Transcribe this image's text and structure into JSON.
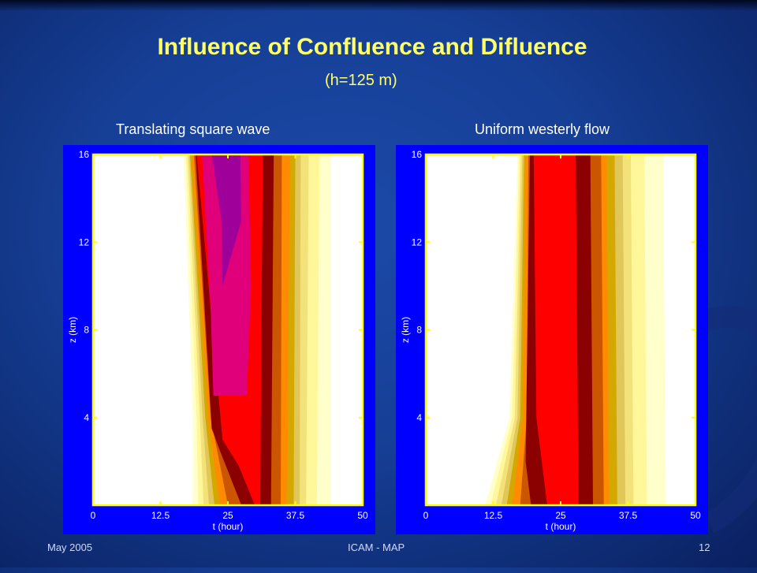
{
  "slide": {
    "title": "Influence of Confluence and Difluence",
    "subtitle": "(h=125 m)",
    "footer_left": "May 2005",
    "footer_center": "ICAM - MAP",
    "footer_right": "12"
  },
  "colors": {
    "background": "#163f96",
    "title": "#ffff66",
    "plot_frame": "#0000ff",
    "axis_line": "#ffff00",
    "contour_levels": [
      "#ffffff",
      "#ffffcc",
      "#fff799",
      "#f3e27a",
      "#e1c65a",
      "#d5a800",
      "#ff8c00",
      "#cc5500",
      "#8b0000",
      "#ff0000",
      "#e0007a",
      "#a0009a"
    ]
  },
  "chart_data": [
    {
      "type": "contour",
      "title": "Translating square wave",
      "xlabel": "t (hour)",
      "ylabel": "z (km)",
      "xlim": [
        0,
        50
      ],
      "ylim": [
        0,
        16
      ],
      "xticks": [
        "0",
        "12.5",
        "25",
        "37.5",
        "50"
      ],
      "yticks": [
        "4",
        "8",
        "12",
        "16"
      ],
      "contour_bands": [
        {
          "level": 0,
          "left": [
            [
              17,
              0
            ],
            [
              17.5,
              4
            ],
            [
              16.5,
              16
            ]
          ],
          "right": [
            [
              50,
              0
            ],
            [
              50,
              16
            ]
          ]
        },
        {
          "level": 1,
          "left": [
            [
              18.5,
              0
            ],
            [
              18.5,
              4
            ],
            [
              16.8,
              16
            ]
          ],
          "right": [
            [
              44,
              0
            ],
            [
              44,
              16
            ]
          ]
        },
        {
          "level": 2,
          "left": [
            [
              19.5,
              0
            ],
            [
              19.2,
              4
            ],
            [
              17.2,
              16
            ]
          ],
          "right": [
            [
              41.5,
              0
            ],
            [
              42,
              16
            ]
          ]
        },
        {
          "level": 3,
          "left": [
            [
              20.5,
              0
            ],
            [
              19.8,
              4
            ],
            [
              17.5,
              16
            ]
          ],
          "right": [
            [
              39.5,
              0
            ],
            [
              40,
              16
            ]
          ]
        },
        {
          "level": 4,
          "left": [
            [
              21.5,
              0
            ],
            [
              20.3,
              4
            ],
            [
              17.8,
              16
            ]
          ],
          "right": [
            [
              38.3,
              0
            ],
            [
              38.5,
              16
            ]
          ]
        },
        {
          "level": 5,
          "left": [
            [
              22.5,
              0
            ],
            [
              20.8,
              4
            ],
            [
              18,
              16
            ]
          ],
          "right": [
            [
              37.2,
              0
            ],
            [
              37.5,
              16
            ]
          ]
        },
        {
          "level": 6,
          "left": [
            [
              23.5,
              0
            ],
            [
              21.3,
              4
            ],
            [
              18.3,
              16
            ]
          ],
          "right": [
            [
              36,
              0
            ],
            [
              36.5,
              16
            ]
          ]
        },
        {
          "level": 7,
          "left": [
            [
              25,
              0
            ],
            [
              21.8,
              4
            ],
            [
              18.7,
              16
            ]
          ],
          "right": [
            [
              34.8,
              0
            ],
            [
              35,
              16
            ]
          ]
        },
        {
          "level": 8,
          "left": [
            [
              27.5,
              0
            ],
            [
              23.5,
              2.5
            ],
            [
              22,
              3.5
            ],
            [
              19,
              16
            ]
          ],
          "right": [
            [
              33,
              0
            ],
            [
              33.5,
              16
            ]
          ]
        },
        {
          "level": 9,
          "left": [
            [
              30,
              0
            ],
            [
              27,
              1.8
            ],
            [
              24,
              3
            ],
            [
              19.2,
              16
            ]
          ],
          "right": [
            [
              31,
              0
            ],
            [
              31.2,
              8
            ],
            [
              31.5,
              16
            ]
          ]
        },
        {
          "level": 10,
          "left": [
            [
              22.3,
              5
            ],
            [
              21.8,
              9
            ],
            [
              20.2,
              16
            ]
          ],
          "right": [
            [
              28.5,
              5
            ],
            [
              29.3,
              10
            ],
            [
              28.8,
              16
            ]
          ]
        },
        {
          "level": 11,
          "left": [
            [
              24,
              10
            ],
            [
              23.8,
              13
            ],
            [
              22,
              16
            ]
          ],
          "right": [
            [
              27.5,
              13
            ],
            [
              27.3,
              16
            ]
          ]
        }
      ]
    },
    {
      "type": "contour",
      "title": "Uniform westerly flow",
      "xlabel": "t (hour)",
      "ylabel": "z (km)",
      "xlim": [
        0,
        50
      ],
      "ylim": [
        0,
        16
      ],
      "xticks": [
        "0",
        "12.5",
        "25",
        "37.5",
        "50"
      ],
      "yticks": [
        "4",
        "8",
        "12",
        "16"
      ],
      "contour_bands": [
        {
          "level": 0,
          "left": [
            [
              9.5,
              0
            ],
            [
              14,
              4
            ],
            [
              16,
              16
            ]
          ],
          "right": [
            [
              50,
              0
            ],
            [
              50,
              16
            ]
          ]
        },
        {
          "level": 1,
          "left": [
            [
              11,
              0
            ],
            [
              15.5,
              4
            ],
            [
              17,
              16
            ]
          ],
          "right": [
            [
              44.5,
              0
            ],
            [
              44,
              16
            ]
          ]
        },
        {
          "level": 2,
          "left": [
            [
              12,
              0
            ],
            [
              16,
              4
            ],
            [
              17.3,
              16
            ]
          ],
          "right": [
            [
              41,
              0
            ],
            [
              40.5,
              16
            ]
          ]
        },
        {
          "level": 3,
          "left": [
            [
              13,
              0
            ],
            [
              16.5,
              4
            ],
            [
              17.6,
              16
            ]
          ],
          "right": [
            [
              38.5,
              0
            ],
            [
              38,
              16
            ]
          ]
        },
        {
          "level": 4,
          "left": [
            [
              14,
              0
            ],
            [
              17,
              4
            ],
            [
              17.9,
              16
            ]
          ],
          "right": [
            [
              37,
              0
            ],
            [
              36.5,
              16
            ]
          ]
        },
        {
          "level": 5,
          "left": [
            [
              15,
              0
            ],
            [
              17.5,
              4
            ],
            [
              18.2,
              16
            ]
          ],
          "right": [
            [
              35.5,
              0
            ],
            [
              35,
              16
            ]
          ]
        },
        {
          "level": 6,
          "left": [
            [
              16,
              0
            ],
            [
              18,
              4
            ],
            [
              18.5,
              16
            ]
          ],
          "right": [
            [
              34,
              0
            ],
            [
              33.5,
              16
            ]
          ]
        },
        {
          "level": 7,
          "left": [
            [
              17.5,
              0
            ],
            [
              18.7,
              4
            ],
            [
              19,
              16
            ]
          ],
          "right": [
            [
              33,
              0
            ],
            [
              32.5,
              16
            ]
          ]
        },
        {
          "level": 8,
          "left": [
            [
              19.5,
              0
            ],
            [
              18.5,
              2
            ],
            [
              19.3,
              16
            ]
          ],
          "right": [
            [
              31,
              0
            ],
            [
              30.5,
              16
            ]
          ]
        },
        {
          "level": 9,
          "left": [
            [
              22.5,
              0
            ],
            [
              20.5,
              4
            ],
            [
              20,
              16
            ]
          ],
          "right": [
            [
              28.3,
              0
            ],
            [
              27.8,
              16
            ]
          ]
        }
      ]
    }
  ]
}
